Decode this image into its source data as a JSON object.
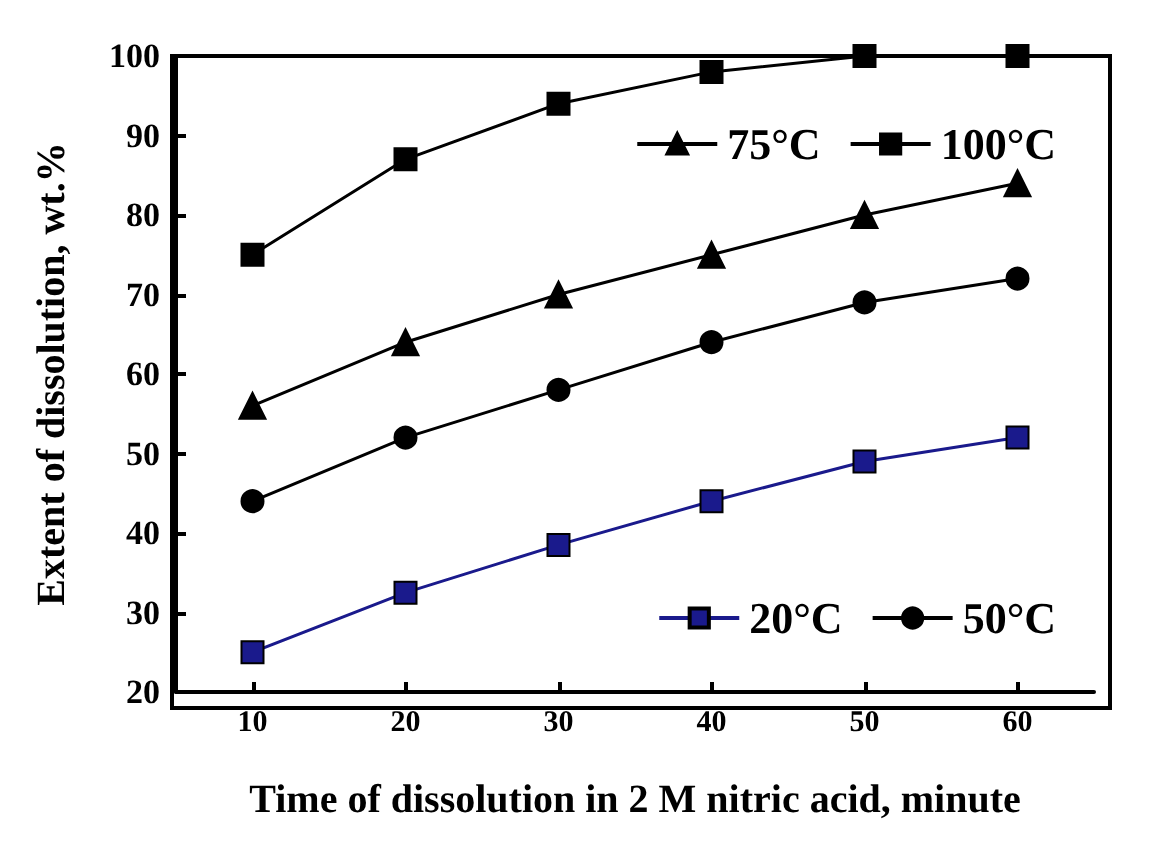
{
  "chart_data": {
    "type": "line",
    "xlabel": "Time of dissolution in 2 M nitric acid, minute",
    "ylabel": "Extent of dissolution, wt.%",
    "x": [
      10,
      20,
      30,
      40,
      50,
      60
    ],
    "series": [
      {
        "name": "20°C",
        "color": "#1a1a8c",
        "marker": "square",
        "values": [
          25,
          32.5,
          38.5,
          44,
          49,
          52
        ]
      },
      {
        "name": "50°C",
        "color": "#000000",
        "marker": "circle",
        "values": [
          44,
          52,
          58,
          64,
          69,
          72
        ]
      },
      {
        "name": "75°C",
        "color": "#000000",
        "marker": "triangle",
        "values": [
          56,
          64,
          70,
          75,
          80,
          84
        ]
      },
      {
        "name": "100°C",
        "color": "#000000",
        "marker": "square",
        "values": [
          75,
          87,
          94,
          98,
          100,
          100
        ]
      }
    ],
    "xlim": [
      5,
      65
    ],
    "xticks": [
      10,
      20,
      30,
      40,
      50,
      60
    ],
    "ylim": [
      20,
      100
    ],
    "yticks": [
      20,
      30,
      40,
      50,
      60,
      70,
      80,
      90,
      100
    ],
    "grid": false,
    "legend": "right",
    "line_style": "solid"
  }
}
